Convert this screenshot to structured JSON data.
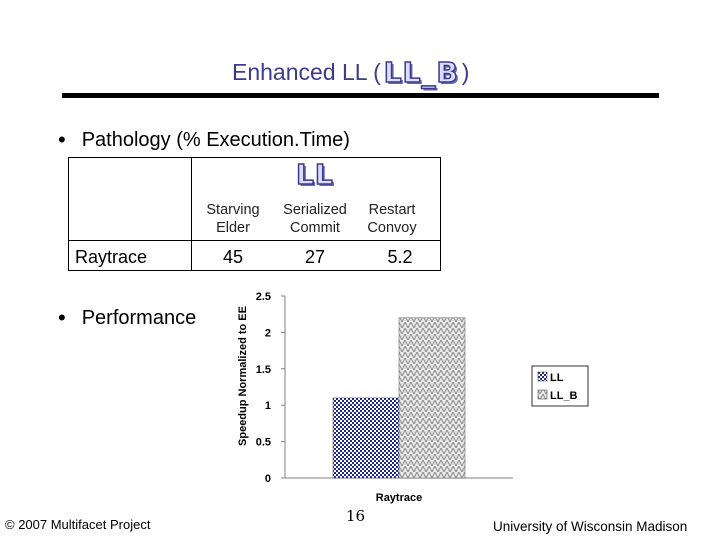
{
  "title": {
    "prefix": "Enhanced LL (",
    "logo_text": "LL_B",
    "suffix": ")"
  },
  "bullets": {
    "pathology": "Pathology (% Execution.Time)",
    "performance": "Performance"
  },
  "table": {
    "logo_text": "LL",
    "columns": [
      "Starving Elder",
      "Serialized Commit",
      "Restart Convoy"
    ],
    "column_lines": [
      [
        "Starving",
        "Elder"
      ],
      [
        "Serialized",
        "Commit"
      ],
      [
        "Restart",
        "Convoy"
      ]
    ],
    "rows": [
      {
        "label": "Raytrace",
        "values": [
          "45",
          "27",
          "5.2"
        ]
      }
    ]
  },
  "chart_data": {
    "type": "bar",
    "categories": [
      "Raytrace"
    ],
    "series": [
      {
        "name": "LL",
        "values": [
          1.1
        ]
      },
      {
        "name": "LL_B",
        "values": [
          2.2
        ]
      }
    ],
    "xlabel": "Raytrace",
    "ylabel": "Speedup Normalized to EE",
    "ylim": [
      0,
      2.5
    ],
    "yticks": [
      "0",
      "0.5",
      "1",
      "1.5",
      "2",
      "2.5"
    ],
    "ytick_values": [
      0,
      0.5,
      1,
      1.5,
      2,
      2.5
    ],
    "grid": false,
    "legend": "right",
    "colors": {
      "LL": "#1e2a8c",
      "LL_B": "#b8b8b8"
    }
  },
  "footer": {
    "copyright": "© 2007 Multifacet Project",
    "page_number": "16",
    "university": "University of Wisconsin Madison"
  }
}
